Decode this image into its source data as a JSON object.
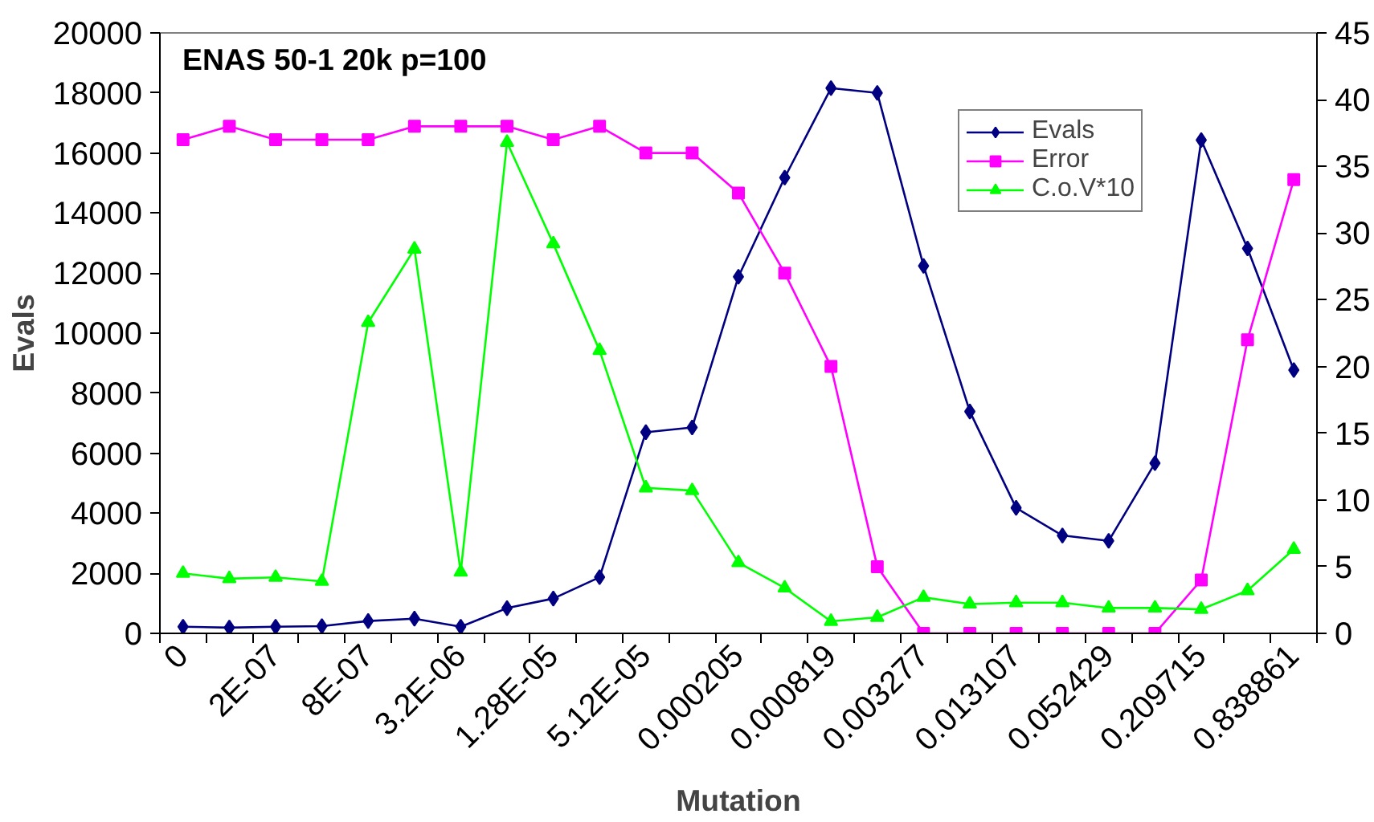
{
  "chart_data": {
    "type": "line",
    "title": "ENAS 50-1 20k p=100",
    "xlabel": "Mutation",
    "ylabel": "Evals",
    "categories": [
      "0",
      null,
      "2E-07",
      null,
      "8E-07",
      null,
      "3.2E-06",
      null,
      "1.28E-05",
      null,
      "5.12E-05",
      null,
      "0.000205",
      null,
      "0.000819",
      null,
      "0.003277",
      null,
      "0.013107",
      null,
      "0.052429",
      null,
      "0.209715",
      null,
      "0.838861"
    ],
    "series": [
      {
        "name": "Evals",
        "color": "#000080",
        "marker": "diamond",
        "values": [
          220,
          190,
          220,
          240,
          410,
          490,
          220,
          840,
          1160,
          1870,
          6700,
          6860,
          11880,
          15180,
          18160,
          18000,
          12240,
          7390,
          4180,
          3260,
          3080,
          5670,
          16430,
          12820,
          8770
        ]
      },
      {
        "name": "Error",
        "color": "#ff00ff",
        "marker": "square",
        "axis": "y2",
        "values": [
          37,
          38,
          37,
          37,
          37,
          38,
          38,
          38,
          37,
          38,
          36,
          36,
          33,
          27,
          20,
          5,
          0,
          0,
          0,
          0,
          0,
          0,
          4,
          22,
          34
        ]
      },
      {
        "name": "C.o.V*10",
        "color": "#00ff00",
        "marker": "triangle",
        "axis": "y2",
        "values": [
          4.5,
          4.1,
          4.2,
          3.9,
          23.3,
          28.8,
          4.6,
          36.8,
          29.2,
          21.2,
          10.9,
          10.7,
          5.3,
          3.4,
          0.9,
          1.2,
          2.7,
          2.2,
          2.3,
          2.3,
          1.9,
          1.9,
          1.8,
          3.2,
          6.3
        ]
      }
    ],
    "ylim": [
      0,
      20000
    ],
    "yticks": [
      0,
      2000,
      4000,
      6000,
      8000,
      10000,
      12000,
      14000,
      16000,
      18000,
      20000
    ],
    "y2lim": [
      0,
      45
    ],
    "y2ticks": [
      0,
      5,
      10,
      15,
      20,
      25,
      30,
      35,
      40,
      45
    ],
    "legend": "top right",
    "grid": false,
    "line_style": "solid"
  }
}
